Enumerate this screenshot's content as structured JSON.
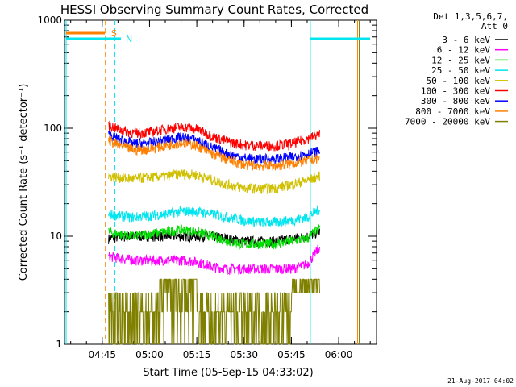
{
  "chart_data": {
    "type": "line",
    "title": "HESSI Observing Summary Count Rates, Corrected",
    "xlabel": "Start Time (05-Sep-15 04:33:02)",
    "ylabel": "Corrected Count Rate (s⁻¹ detector⁻¹)",
    "yscale": "log",
    "ylim": [
      1,
      1000
    ],
    "xlim": [
      "04:33:02",
      "06:12:00"
    ],
    "x_ticks": [
      "04:45",
      "05:00",
      "05:15",
      "05:30",
      "05:45",
      "06:00"
    ],
    "y_ticks": [
      "1",
      "10",
      "100",
      "1000"
    ],
    "legend_header": [
      "Det 1,3,5,6,7,",
      "Att 0"
    ],
    "legend_placement": "right",
    "footer": "21-Aug-2017 04:02",
    "markers": [
      {
        "label": "S",
        "color": "#ff8000"
      },
      {
        "label": "N",
        "color": "#00e5ee"
      }
    ],
    "data_start": "04:47",
    "data_end": "05:54",
    "x": [
      "04:47",
      "04:50",
      "04:55",
      "05:00",
      "05:05",
      "05:10",
      "05:15",
      "05:20",
      "05:25",
      "05:30",
      "05:35",
      "05:40",
      "05:45",
      "05:50",
      "05:54"
    ],
    "series": [
      {
        "name": "3 - 6 keV",
        "color": "#000000",
        "values": [
          9.5,
          9.8,
          10,
          10,
          10,
          10,
          10,
          10,
          9.5,
          9,
          9,
          9,
          9.5,
          10,
          11
        ]
      },
      {
        "name": "6 - 12 keV",
        "color": "#ff00ff",
        "values": [
          6.5,
          6.3,
          6,
          6,
          6,
          6,
          5.8,
          5.2,
          5,
          5,
          5,
          5,
          5,
          5.5,
          8
        ]
      },
      {
        "name": "12 - 25 keV",
        "color": "#00dd00",
        "values": [
          11,
          10.5,
          10,
          10.5,
          11,
          11.5,
          11,
          10,
          9,
          8.5,
          8.5,
          8.5,
          9,
          9.5,
          12
        ]
      },
      {
        "name": "25 - 50 keV",
        "color": "#00e5ee",
        "values": [
          16,
          15.5,
          15,
          15.5,
          16,
          17,
          17,
          16,
          15,
          14,
          13.5,
          13.5,
          14,
          15,
          18
        ]
      },
      {
        "name": "50 - 100 keV",
        "color": "#d0c000",
        "values": [
          36,
          35,
          34,
          35,
          36,
          38,
          37,
          33,
          30,
          28,
          27.5,
          28,
          30,
          33,
          36
        ]
      },
      {
        "name": "100 - 300 keV",
        "color": "#ff0000",
        "values": [
          107,
          98,
          90,
          92,
          98,
          103,
          98,
          84,
          75,
          70,
          69,
          69,
          72,
          80,
          88
        ]
      },
      {
        "name": "300 - 800 keV",
        "color": "#0000ff",
        "values": [
          88,
          80,
          72,
          73,
          78,
          83,
          78,
          66,
          58,
          53,
          52,
          52,
          54,
          58,
          62
        ]
      },
      {
        "name": "800 - 7000 keV",
        "color": "#ff8000",
        "values": [
          77,
          70,
          63,
          64,
          69,
          74,
          69,
          58,
          51,
          46,
          45,
          45,
          47,
          50,
          53
        ]
      },
      {
        "name": "7000 - 20000 keV",
        "color": "#808000",
        "values": [
          2,
          2,
          2.5,
          3,
          3,
          3,
          2.5,
          2,
          2,
          2,
          2,
          2,
          2.5,
          3,
          3.5
        ]
      }
    ]
  }
}
